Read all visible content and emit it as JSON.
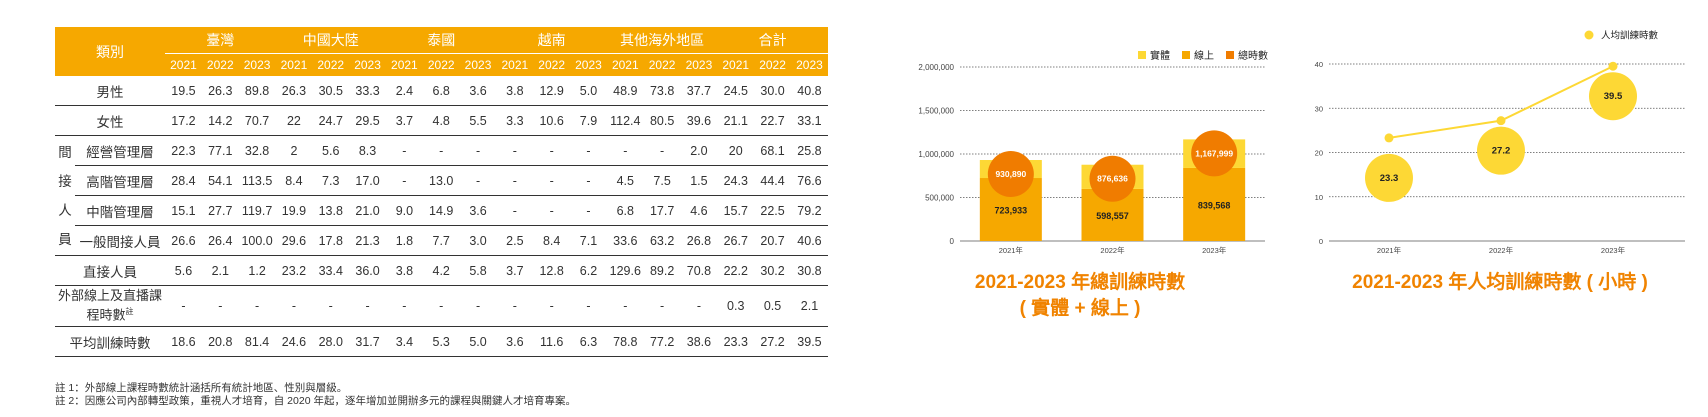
{
  "table": {
    "category_header": "類別",
    "regions": [
      "臺灣",
      "中國大陸",
      "泰國",
      "越南",
      "其他海外地區",
      "合計"
    ],
    "years": [
      "2021",
      "2022",
      "2023"
    ],
    "rows": [
      {
        "label": "男性",
        "values": [
          "19.5",
          "26.3",
          "89.8",
          "26.3",
          "30.5",
          "33.3",
          "2.4",
          "6.8",
          "3.6",
          "3.8",
          "12.9",
          "5.0",
          "48.9",
          "73.8",
          "37.7",
          "24.5",
          "30.0",
          "40.8"
        ]
      },
      {
        "label": "女性",
        "values": [
          "17.2",
          "14.2",
          "70.7",
          "22",
          "24.7",
          "29.5",
          "3.7",
          "4.8",
          "5.5",
          "3.3",
          "10.6",
          "7.9",
          "112.4",
          "80.5",
          "39.6",
          "21.1",
          "22.7",
          "33.1"
        ]
      },
      {
        "label": "經營管理層",
        "values": [
          "22.3",
          "77.1",
          "32.8",
          "2",
          "5.6",
          "8.3",
          "-",
          "-",
          "-",
          "-",
          "-",
          "-",
          "-",
          "-",
          "2.0",
          "20",
          "68.1",
          "25.8"
        ]
      },
      {
        "label": "高階管理層",
        "values": [
          "28.4",
          "54.1",
          "113.5",
          "8.4",
          "7.3",
          "17.0",
          "-",
          "13.0",
          "-",
          "-",
          "-",
          "-",
          "4.5",
          "7.5",
          "1.5",
          "24.3",
          "44.4",
          "76.6"
        ]
      },
      {
        "label": "中階管理層",
        "values": [
          "15.1",
          "27.7",
          "119.7",
          "19.9",
          "13.8",
          "21.0",
          "9.0",
          "14.9",
          "3.6",
          "-",
          "-",
          "-",
          "6.8",
          "17.7",
          "4.6",
          "15.7",
          "22.5",
          "79.2"
        ]
      },
      {
        "label": "一般間接人員",
        "values": [
          "26.6",
          "26.4",
          "100.0",
          "29.6",
          "17.8",
          "21.3",
          "1.8",
          "7.7",
          "3.0",
          "2.5",
          "8.4",
          "7.1",
          "33.6",
          "63.2",
          "26.8",
          "26.7",
          "20.7",
          "40.6"
        ]
      },
      {
        "label": "直接人員",
        "values": [
          "5.6",
          "2.1",
          "1.2",
          "23.2",
          "33.4",
          "36.0",
          "3.8",
          "4.2",
          "5.8",
          "3.7",
          "12.8",
          "6.2",
          "129.6",
          "89.2",
          "70.8",
          "22.2",
          "30.2",
          "30.8"
        ]
      },
      {
        "label": "外部線上及直播課程時數",
        "label_sup": "註",
        "values": [
          "-",
          "-",
          "-",
          "-",
          "-",
          "-",
          "-",
          "-",
          "-",
          "-",
          "-",
          "-",
          "-",
          "-",
          "-",
          "0.3",
          "0.5",
          "2.1"
        ]
      },
      {
        "label": "平均訓練時數",
        "values": [
          "18.6",
          "20.8",
          "81.4",
          "24.6",
          "28.0",
          "31.7",
          "3.4",
          "5.3",
          "5.0",
          "3.6",
          "11.6",
          "6.3",
          "78.8",
          "77.2",
          "38.6",
          "23.3",
          "27.2",
          "39.5"
        ]
      }
    ],
    "indirect_group_chars": [
      "間",
      "接",
      "人",
      "員"
    ]
  },
  "notes": [
    "註 1：外部線上課程時數統計涵括所有統計地區、性別與層級。",
    "註 2：因應公司內部轉型政策，重視人才培育，自 2020 年起，逐年增加並開辦多元的課程與關鍵人才培育專案。"
  ],
  "chart_data": [
    {
      "type": "bar",
      "title": "2021-2023 年總訓練時數",
      "subtitle": "( 實體 + 線上 )",
      "categories": [
        "2021年",
        "2022年",
        "2023年"
      ],
      "series": [
        {
          "name": "實體",
          "values": [
            206957,
            278079,
            328431
          ],
          "color": "#fdd835"
        },
        {
          "name": "線上",
          "values": [
            723933,
            598557,
            839568
          ],
          "color": "#f6a800"
        },
        {
          "name": "總時數",
          "values": [
            930890,
            876636,
            1167999
          ],
          "color": "#f07c00"
        }
      ],
      "value_labels": {
        "實體": [
          "206,957",
          "278,079",
          "328,431"
        ],
        "線上": [
          "723,933",
          "598,557",
          "839,568"
        ],
        "總時數": [
          "930,890",
          "876,636",
          "1,167,999"
        ]
      },
      "y_ticks": [
        "0",
        "500,000",
        "1,000,000",
        "1,500,000",
        "2,000,000"
      ],
      "ylim": [
        0,
        2000000
      ],
      "legend": "top-right",
      "grid": true
    },
    {
      "type": "line",
      "title": "2021-2023 年人均訓練時數 ( 小時 )",
      "categories": [
        "2021年",
        "2022年",
        "2023年"
      ],
      "series": [
        {
          "name": "人均訓練時數",
          "values": [
            23.3,
            27.2,
            39.5
          ],
          "color": "#fdd835"
        }
      ],
      "value_labels": [
        "23.3",
        "27.2",
        "39.5"
      ],
      "y_ticks": [
        "0",
        "10",
        "20",
        "30",
        "40"
      ],
      "ylim": [
        0,
        40
      ],
      "legend": "top-right",
      "grid": true
    }
  ]
}
